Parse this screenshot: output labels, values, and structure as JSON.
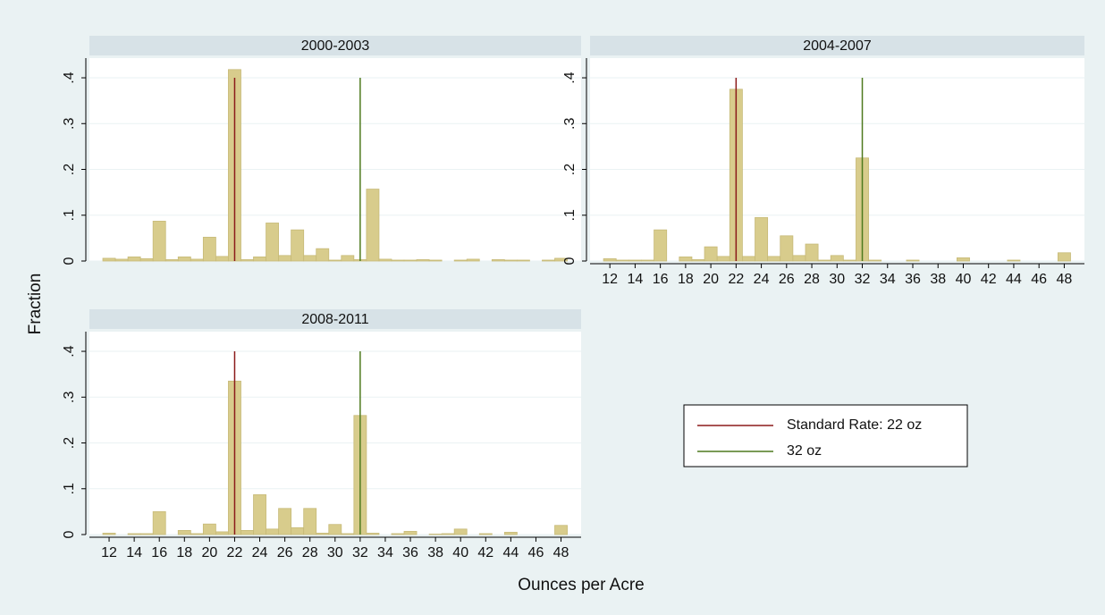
{
  "figure": {
    "x_label": "Ounces per Acre",
    "y_label": "Fraction"
  },
  "chart_data": [
    {
      "type": "histogram",
      "title": "2000-2003",
      "color": "#d8cc8c",
      "xtick_labels": false,
      "bins": [
        11.5,
        12.5,
        13.5,
        14.5,
        15.5,
        16.5,
        17.5,
        18.5,
        19.5,
        20.5,
        21.5,
        22.5,
        23.5,
        24.5,
        25.5,
        26.5,
        27.5,
        28.5,
        29.5,
        30.5,
        31.5,
        32.5,
        33.5,
        34.5,
        35.5,
        36.5,
        37.5,
        38.5,
        39.5,
        40.5,
        41.5,
        42.5,
        43.5,
        44.5,
        45.5,
        46.5,
        47.5,
        48.5
      ],
      "values": [
        0.006,
        0.004,
        0.009,
        0.005,
        0.087,
        0.003,
        0.009,
        0.004,
        0.052,
        0.01,
        0.418,
        0.003,
        0.009,
        0.083,
        0.012,
        0.068,
        0.012,
        0.027,
        0.002,
        0.012,
        0.003,
        0.157,
        0.004,
        0.002,
        0.002,
        0.003,
        0.002,
        0,
        0.002,
        0.004,
        0,
        0.003,
        0.002,
        0.002,
        0,
        0.002,
        0.006
      ],
      "reference_lines": [
        {
          "name": "Standard Rate: 22 oz",
          "x": 22,
          "color": "#8b1a1a"
        },
        {
          "name": "32 oz",
          "x": 32,
          "color": "#4e7a1e"
        }
      ],
      "refline_top": 0.4,
      "xlim": [
        10.43,
        49.6
      ],
      "ylim": [
        0,
        0.443
      ],
      "xticks": [
        12,
        14,
        16,
        18,
        20,
        22,
        24,
        26,
        28,
        30,
        32,
        34,
        36,
        38,
        40,
        42,
        44,
        46,
        48
      ],
      "yticks": [
        0,
        {
          "value": 0.1,
          "label": ".1"
        },
        {
          "value": 0.2,
          "label": ".2"
        },
        {
          "value": 0.3,
          "label": ".3"
        },
        {
          "value": 0.4,
          "label": ".4"
        }
      ]
    },
    {
      "type": "histogram",
      "title": "2004-2007",
      "color": "#d8cc8c",
      "xtick_labels": true,
      "bins": [
        11.5,
        12.5,
        13.5,
        14.5,
        15.5,
        16.5,
        17.5,
        18.5,
        19.5,
        20.5,
        21.5,
        22.5,
        23.5,
        24.5,
        25.5,
        26.5,
        27.5,
        28.5,
        29.5,
        30.5,
        31.5,
        32.5,
        33.5,
        34.5,
        35.5,
        36.5,
        37.5,
        38.5,
        39.5,
        40.5,
        41.5,
        42.5,
        43.5,
        44.5,
        45.5,
        46.5,
        47.5,
        48.5
      ],
      "values": [
        0.005,
        0.002,
        0.002,
        0.002,
        0.068,
        0,
        0.009,
        0.003,
        0.031,
        0.01,
        0.375,
        0.01,
        0.095,
        0.01,
        0.055,
        0.012,
        0.037,
        0.002,
        0.012,
        0.002,
        0.225,
        0.002,
        0,
        0,
        0.002,
        0,
        0,
        0,
        0.007,
        0,
        0,
        0,
        0.002,
        0,
        0,
        0,
        0.018
      ],
      "reference_lines": [
        {
          "name": "Standard Rate: 22 oz",
          "x": 22,
          "color": "#8b1a1a"
        },
        {
          "name": "32 oz",
          "x": 32,
          "color": "#4e7a1e"
        }
      ],
      "refline_top": 0.4,
      "xlim": [
        10.43,
        49.6
      ],
      "ylim": [
        0,
        0.443
      ],
      "xticks": [
        12,
        14,
        16,
        18,
        20,
        22,
        24,
        26,
        28,
        30,
        32,
        34,
        36,
        38,
        40,
        42,
        44,
        46,
        48
      ],
      "yticks": [
        0,
        {
          "value": 0.1,
          "label": ".1"
        },
        {
          "value": 0.2,
          "label": ".2"
        },
        {
          "value": 0.3,
          "label": ".3"
        },
        {
          "value": 0.4,
          "label": ".4"
        }
      ]
    },
    {
      "type": "histogram",
      "title": "2008-2011",
      "color": "#d8cc8c",
      "xtick_labels": true,
      "bins": [
        11.5,
        12.5,
        13.5,
        14.5,
        15.5,
        16.5,
        17.5,
        18.5,
        19.5,
        20.5,
        21.5,
        22.5,
        23.5,
        24.5,
        25.5,
        26.5,
        27.5,
        28.5,
        29.5,
        30.5,
        31.5,
        32.5,
        33.5,
        34.5,
        35.5,
        36.5,
        37.5,
        38.5,
        39.5,
        40.5,
        41.5,
        42.5,
        43.5,
        44.5,
        45.5,
        46.5,
        47.5,
        48.5
      ],
      "values": [
        0.003,
        0,
        0.002,
        0.002,
        0.05,
        0,
        0.009,
        0.002,
        0.023,
        0.006,
        0.335,
        0.009,
        0.087,
        0.012,
        0.057,
        0.015,
        0.057,
        0.003,
        0.022,
        0.002,
        0.26,
        0.003,
        0,
        0.002,
        0.007,
        0,
        0.001,
        0.002,
        0.012,
        0,
        0.002,
        0,
        0.005,
        0,
        0,
        0,
        0.02
      ],
      "reference_lines": [
        {
          "name": "Standard Rate: 22 oz",
          "x": 22,
          "color": "#8b1a1a"
        },
        {
          "name": "32 oz",
          "x": 32,
          "color": "#4e7a1e"
        }
      ],
      "refline_top": 0.4,
      "xlim": [
        10.43,
        49.6
      ],
      "ylim": [
        0,
        0.443
      ],
      "xticks": [
        12,
        14,
        16,
        18,
        20,
        22,
        24,
        26,
        28,
        30,
        32,
        34,
        36,
        38,
        40,
        42,
        44,
        46,
        48
      ],
      "yticks": [
        0,
        {
          "value": 0.1,
          "label": ".1"
        },
        {
          "value": 0.2,
          "label": ".2"
        },
        {
          "value": 0.3,
          "label": ".3"
        },
        {
          "value": 0.4,
          "label": ".4"
        }
      ]
    }
  ]
}
